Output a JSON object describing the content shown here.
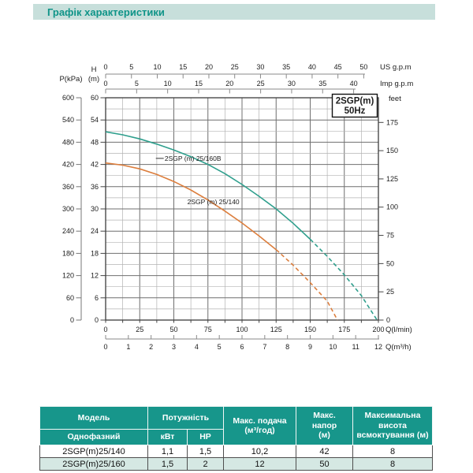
{
  "page": {
    "title": "Графік характеристики"
  },
  "colors": {
    "accent_teal": "#17968b",
    "title_bar_bg": "#c7dfdb",
    "title_text": "#0f9488",
    "alt_row_bg": "#d5e8e3",
    "curve_teal": "#2f9f8d",
    "curve_orange": "#dc7e3d"
  },
  "chart_data": {
    "type": "line",
    "model_box": {
      "lines": [
        "2SGP(m)",
        "50Hz"
      ]
    },
    "axes": {
      "us_gpm": {
        "label": "US  g.p.m",
        "ticks": [
          0,
          5,
          10,
          15,
          20,
          25,
          30,
          35,
          40,
          45,
          50
        ]
      },
      "imp_gpm": {
        "label": "Imp  g.p.m",
        "ticks": [
          0,
          5,
          10,
          15,
          20,
          25,
          30,
          35,
          40
        ]
      },
      "h_m": {
        "label": "H",
        "unit": "(m)",
        "ticks": [
          60,
          54,
          48,
          42,
          36,
          30,
          24,
          18,
          12,
          6,
          0
        ]
      },
      "p_kpa": {
        "label": "P(kPa)",
        "ticks": [
          600,
          540,
          480,
          420,
          360,
          300,
          240,
          180,
          120,
          60,
          0
        ]
      },
      "feet": {
        "label": "feet",
        "ticks": [
          175,
          150,
          125,
          100,
          75,
          50,
          25,
          0
        ]
      },
      "q_lmin": {
        "label": "Q(l/min)",
        "ticks": [
          0,
          25,
          50,
          75,
          100,
          125,
          150,
          175,
          200
        ],
        "range": [
          0,
          200
        ]
      },
      "q_m3h": {
        "label": "Q(m³/h)",
        "ticks": [
          0,
          1,
          2,
          3,
          4,
          5,
          6,
          7,
          8,
          9,
          10,
          11,
          12
        ],
        "range": [
          0,
          12
        ]
      }
    },
    "grid": {
      "q_minor_step": 12.5,
      "q_major_step": 25,
      "h_minor_step": 3,
      "h_major_step": 6
    },
    "series": [
      {
        "name": "2SGP (m) 25/160B",
        "color": "#2f9f8d",
        "solid_until": 150,
        "points": [
          [
            0,
            50.8
          ],
          [
            12.5,
            50.0
          ],
          [
            25,
            48.9
          ],
          [
            37.5,
            47.5
          ],
          [
            50,
            45.9
          ],
          [
            62.5,
            44.1
          ],
          [
            75,
            42.0
          ],
          [
            87.5,
            39.5
          ],
          [
            100,
            36.6
          ],
          [
            112.5,
            33.4
          ],
          [
            125,
            30.0
          ],
          [
            137.5,
            26.1
          ],
          [
            150,
            21.8
          ],
          [
            162.5,
            17.2
          ],
          [
            175,
            12.2
          ],
          [
            187.5,
            6.6
          ],
          [
            199,
            0
          ]
        ]
      },
      {
        "name": "2SGP (m) 25/140",
        "color": "#dc7e3d",
        "solid_until": 125,
        "points": [
          [
            0,
            42.4
          ],
          [
            12.5,
            41.8
          ],
          [
            25,
            40.8
          ],
          [
            37.5,
            39.3
          ],
          [
            50,
            37.4
          ],
          [
            62.5,
            35.1
          ],
          [
            75,
            32.4
          ],
          [
            87.5,
            29.4
          ],
          [
            100,
            26.2
          ],
          [
            112.5,
            22.7
          ],
          [
            125,
            19.0
          ],
          [
            137.5,
            14.8
          ],
          [
            150,
            10.1
          ],
          [
            162.5,
            5.1
          ],
          [
            170,
            0
          ]
        ]
      }
    ],
    "annotations": [
      {
        "text": "2SGP (m) 25/160B",
        "q": 64,
        "h": 43,
        "leader": true
      },
      {
        "text": "2SGP (m) 25/140",
        "q": 79,
        "h": 31.3,
        "leader": false
      }
    ]
  },
  "table": {
    "header": {
      "model": "Модель",
      "model_sub": "Однофазний",
      "power": "Потужність",
      "power_kw": "кВт",
      "power_hp": "HP",
      "max_flow": "Макс. подача\n(м³/год)",
      "max_head": "Макс.\nнапор\n(м)",
      "max_suction": "Максимальна\nвисота\nвсмоктування (м)"
    },
    "rows": [
      {
        "model": "2SGP(m)25/140",
        "kw": "1,1",
        "hp": "1,5",
        "flow": "10,2",
        "head": "42",
        "suction": "8"
      },
      {
        "model": "2SGP(m)25/160",
        "kw": "1,5",
        "hp": "2",
        "flow": "12",
        "head": "50",
        "suction": "8"
      }
    ]
  }
}
